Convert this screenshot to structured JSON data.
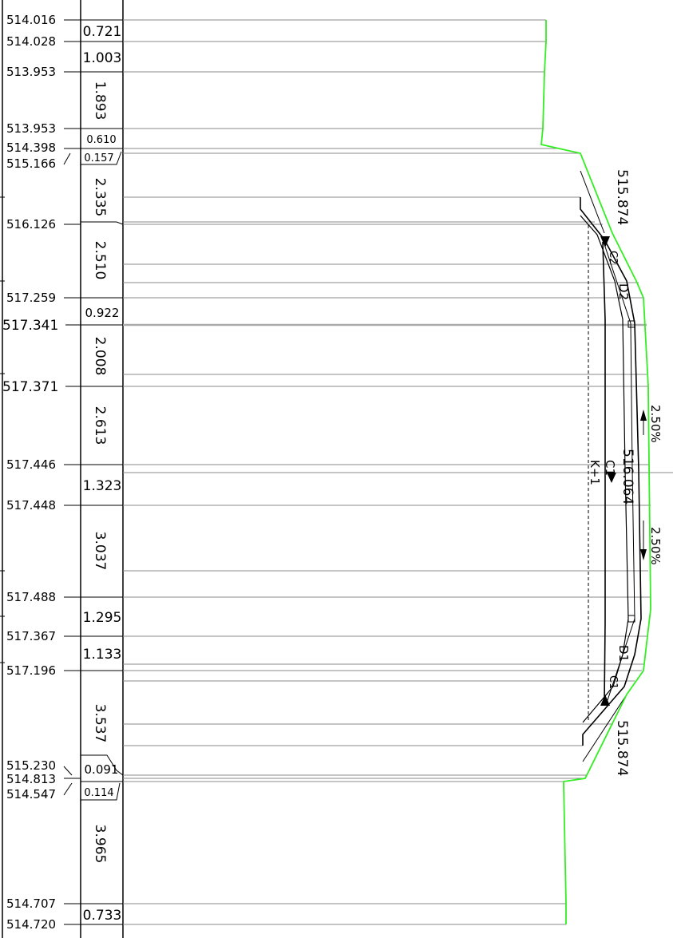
{
  "colors": {
    "ground_line": "#33ee22",
    "line": "#000000",
    "grid": "#888888"
  },
  "elevation_labels": [
    "514.016",
    "514.028",
    "513.953",
    "513.953",
    "514.398",
    "515.166",
    "516.126",
    "517.259",
    "517.341",
    "517.371",
    "517.446",
    "517.448",
    "517.488",
    "517.367",
    "517.196",
    "515.230",
    "514.813",
    "514.547",
    "514.707",
    "514.720"
  ],
  "distance_labels": [
    "0.721",
    "1.003",
    "1.893",
    "0.610",
    "0.157",
    "2.335",
    "2.510",
    "0.922",
    "2.008",
    "2.613",
    "1.323",
    "3.037",
    "1.295",
    "1.133",
    "3.537",
    "0.091",
    "0.114",
    "3.965",
    "0.733"
  ],
  "road_labels": {
    "top_elevation": "515.874",
    "bottom_elevation": "515.874",
    "center_elevation": "516.064",
    "slope_upper": "2.50%",
    "slope_lower": "2.50%",
    "upper_lane": "D2",
    "lower_lane": "D1",
    "upper_curb": "C2",
    "lower_curb": "C1",
    "center_tag": "C1",
    "center_mark": "K+1"
  }
}
